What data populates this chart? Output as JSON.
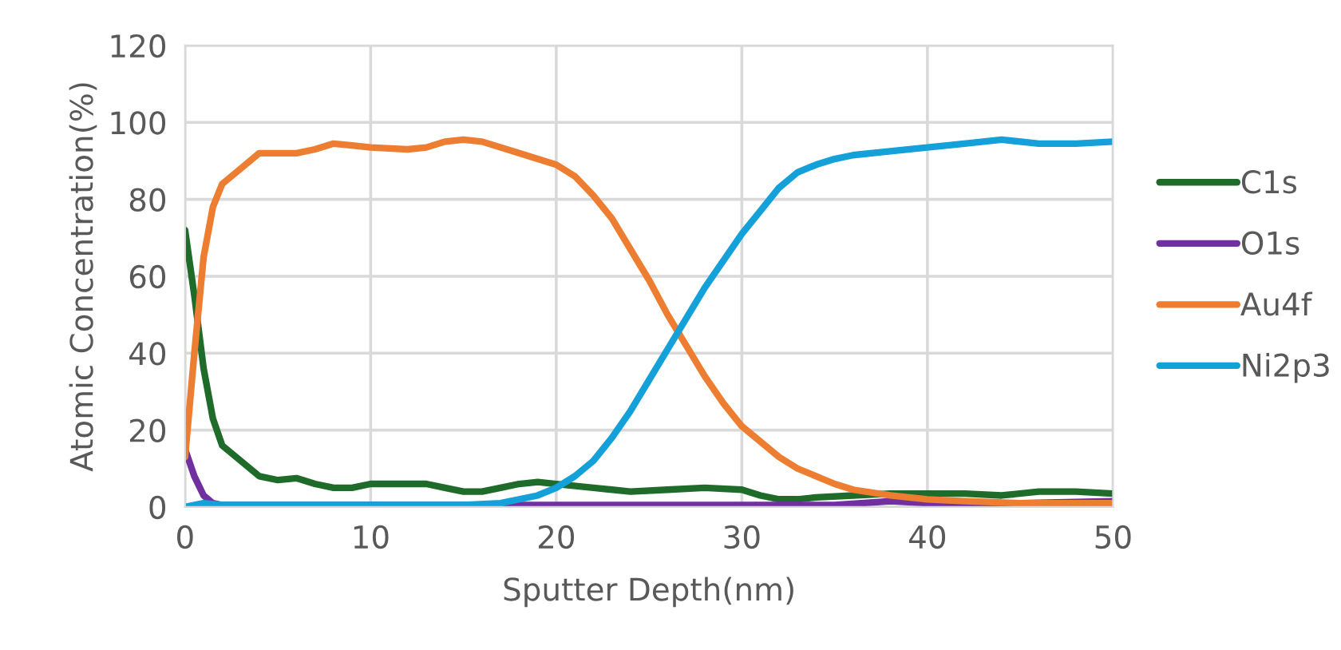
{
  "chart_data": {
    "type": "line",
    "xlabel": "Sputter Depth(nm)",
    "ylabel": "Atomic Concentration(%)",
    "xlim": [
      0,
      50
    ],
    "xticks": [
      0,
      10,
      20,
      30,
      40,
      50
    ],
    "ylim": [
      0,
      120
    ],
    "yticks": [
      0,
      20,
      40,
      60,
      80,
      100,
      120
    ],
    "grid": true,
    "legend": "right",
    "marker": "none",
    "line_style": "solid",
    "series": [
      {
        "name": "C1s",
        "color": "#1e6b2a",
        "x": [
          0,
          0.5,
          1,
          1.5,
          2,
          3,
          4,
          5,
          6,
          7,
          8,
          9,
          10,
          12,
          13,
          14,
          15,
          16,
          17,
          18,
          19,
          20,
          22,
          24,
          26,
          28,
          30,
          31,
          32,
          33,
          34,
          36,
          38,
          40,
          42,
          44,
          46,
          48,
          50
        ],
        "values": [
          72,
          55,
          36,
          23,
          16,
          12,
          8,
          7,
          7.5,
          6,
          5,
          5,
          6,
          6,
          6,
          5,
          4,
          4,
          5,
          6,
          6.5,
          6,
          5,
          4,
          4.5,
          5,
          4.5,
          3,
          2,
          2,
          2.5,
          3,
          3.5,
          3.5,
          3.5,
          3,
          4,
          4,
          3.5
        ]
      },
      {
        "name": "O1s",
        "color": "#7030a0",
        "x": [
          0,
          0.5,
          1,
          1.5,
          2,
          5,
          10,
          15,
          20,
          25,
          30,
          35,
          38,
          40,
          45,
          50
        ],
        "values": [
          15,
          8,
          3,
          1,
          0.5,
          0.5,
          0.5,
          0.5,
          0.5,
          0.5,
          0.5,
          0.5,
          1.5,
          1,
          1,
          1.5
        ]
      },
      {
        "name": "Au4f",
        "color": "#ed7d31",
        "x": [
          0,
          0.5,
          1,
          1.5,
          2,
          3,
          4,
          5,
          6,
          7,
          8,
          9,
          10,
          12,
          13,
          14,
          15,
          16,
          18,
          20,
          21,
          22,
          23,
          24,
          25,
          26,
          27,
          28,
          29,
          30,
          31,
          32,
          33,
          34,
          35,
          36,
          38,
          40,
          42,
          45,
          50
        ],
        "values": [
          13,
          40,
          65,
          78,
          84,
          88,
          92,
          92,
          92,
          93,
          94.5,
          94,
          93.5,
          93,
          93.5,
          95,
          95.5,
          95,
          92,
          89,
          86,
          81,
          75,
          67,
          59,
          50,
          42,
          34,
          27,
          21,
          17,
          13,
          10,
          8,
          6,
          4.5,
          3,
          2,
          1.5,
          1,
          1
        ]
      },
      {
        "name": "Ni2p3",
        "color": "#14a0d8",
        "x": [
          0,
          1,
          2,
          5,
          10,
          15,
          17,
          18,
          19,
          20,
          21,
          22,
          23,
          24,
          25,
          26,
          27,
          28,
          29,
          30,
          31,
          32,
          33,
          34,
          35,
          36,
          38,
          40,
          42,
          44,
          46,
          48,
          50
        ],
        "values": [
          0,
          1,
          0.5,
          0.5,
          0.5,
          0.5,
          1,
          2,
          3,
          5,
          8,
          12,
          18,
          25,
          33,
          41,
          49,
          57,
          64,
          71,
          77,
          83,
          87,
          89,
          90.5,
          91.5,
          92.5,
          93.5,
          94.5,
          95.5,
          94.5,
          94.5,
          95
        ]
      }
    ]
  }
}
